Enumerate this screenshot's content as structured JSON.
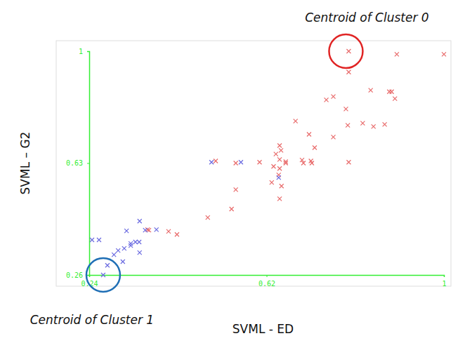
{
  "chart_data": {
    "type": "scatter",
    "x_label": "SVML - ED",
    "y_label": "SVML – G2",
    "xlim": [
      0.24,
      1
    ],
    "ylim": [
      0.26,
      1
    ],
    "xticks": [
      0.24,
      0.62,
      1
    ],
    "yticks": [
      0.26,
      0.63,
      1
    ],
    "grid": false,
    "series": [
      {
        "color": "#e86a6a",
        "marker": "x",
        "x": [
          0.796,
          0.899,
          1.0,
          0.796,
          0.748,
          0.763,
          0.843,
          0.883,
          0.888,
          0.895,
          0.79,
          0.794,
          0.826,
          0.849,
          0.873,
          0.763,
          0.682,
          0.711,
          0.723,
          0.648,
          0.651,
          0.64,
          0.635,
          0.661,
          0.661,
          0.696,
          0.699,
          0.715,
          0.717,
          0.648,
          0.648,
          0.646,
          0.652,
          0.648,
          0.631,
          0.605,
          0.796,
          0.554,
          0.511,
          0.554,
          0.545,
          0.494,
          0.428,
          0.41,
          0.365,
          0.368
        ],
        "values": [
          1.0,
          0.99,
          0.99,
          0.931,
          0.839,
          0.85,
          0.871,
          0.866,
          0.866,
          0.843,
          0.809,
          0.755,
          0.762,
          0.751,
          0.758,
          0.716,
          0.769,
          0.725,
          0.681,
          0.688,
          0.672,
          0.66,
          0.619,
          0.635,
          0.63,
          0.64,
          0.63,
          0.637,
          0.63,
          0.642,
          0.612,
          0.591,
          0.554,
          0.512,
          0.566,
          0.633,
          0.633,
          0.63,
          0.637,
          0.542,
          0.478,
          0.45,
          0.394,
          0.404,
          0.41,
          0.408
        ]
      },
      {
        "color": "#6a6ae0",
        "marker": "x",
        "x": [
          0.502,
          0.565,
          0.646,
          0.348,
          0.384,
          0.36,
          0.246,
          0.261,
          0.32,
          0.347,
          0.339,
          0.329,
          0.329,
          0.315,
          0.302,
          0.293,
          0.312,
          0.348,
          0.279,
          0.27
        ],
        "values": [
          0.633,
          0.633,
          0.582,
          0.438,
          0.41,
          0.408,
          0.376,
          0.376,
          0.406,
          0.369,
          0.369,
          0.364,
          0.357,
          0.348,
          0.341,
          0.327,
          0.304,
          0.334,
          0.292,
          0.26
        ]
      }
    ],
    "annotations": [
      {
        "text": "Centroid of Cluster 0",
        "x": 0.79,
        "y": 1.0,
        "color": "#e02424"
      },
      {
        "text": "Centroid of Cluster 1",
        "x": 0.27,
        "y": 0.26,
        "color": "#1f6fb5"
      }
    ]
  }
}
